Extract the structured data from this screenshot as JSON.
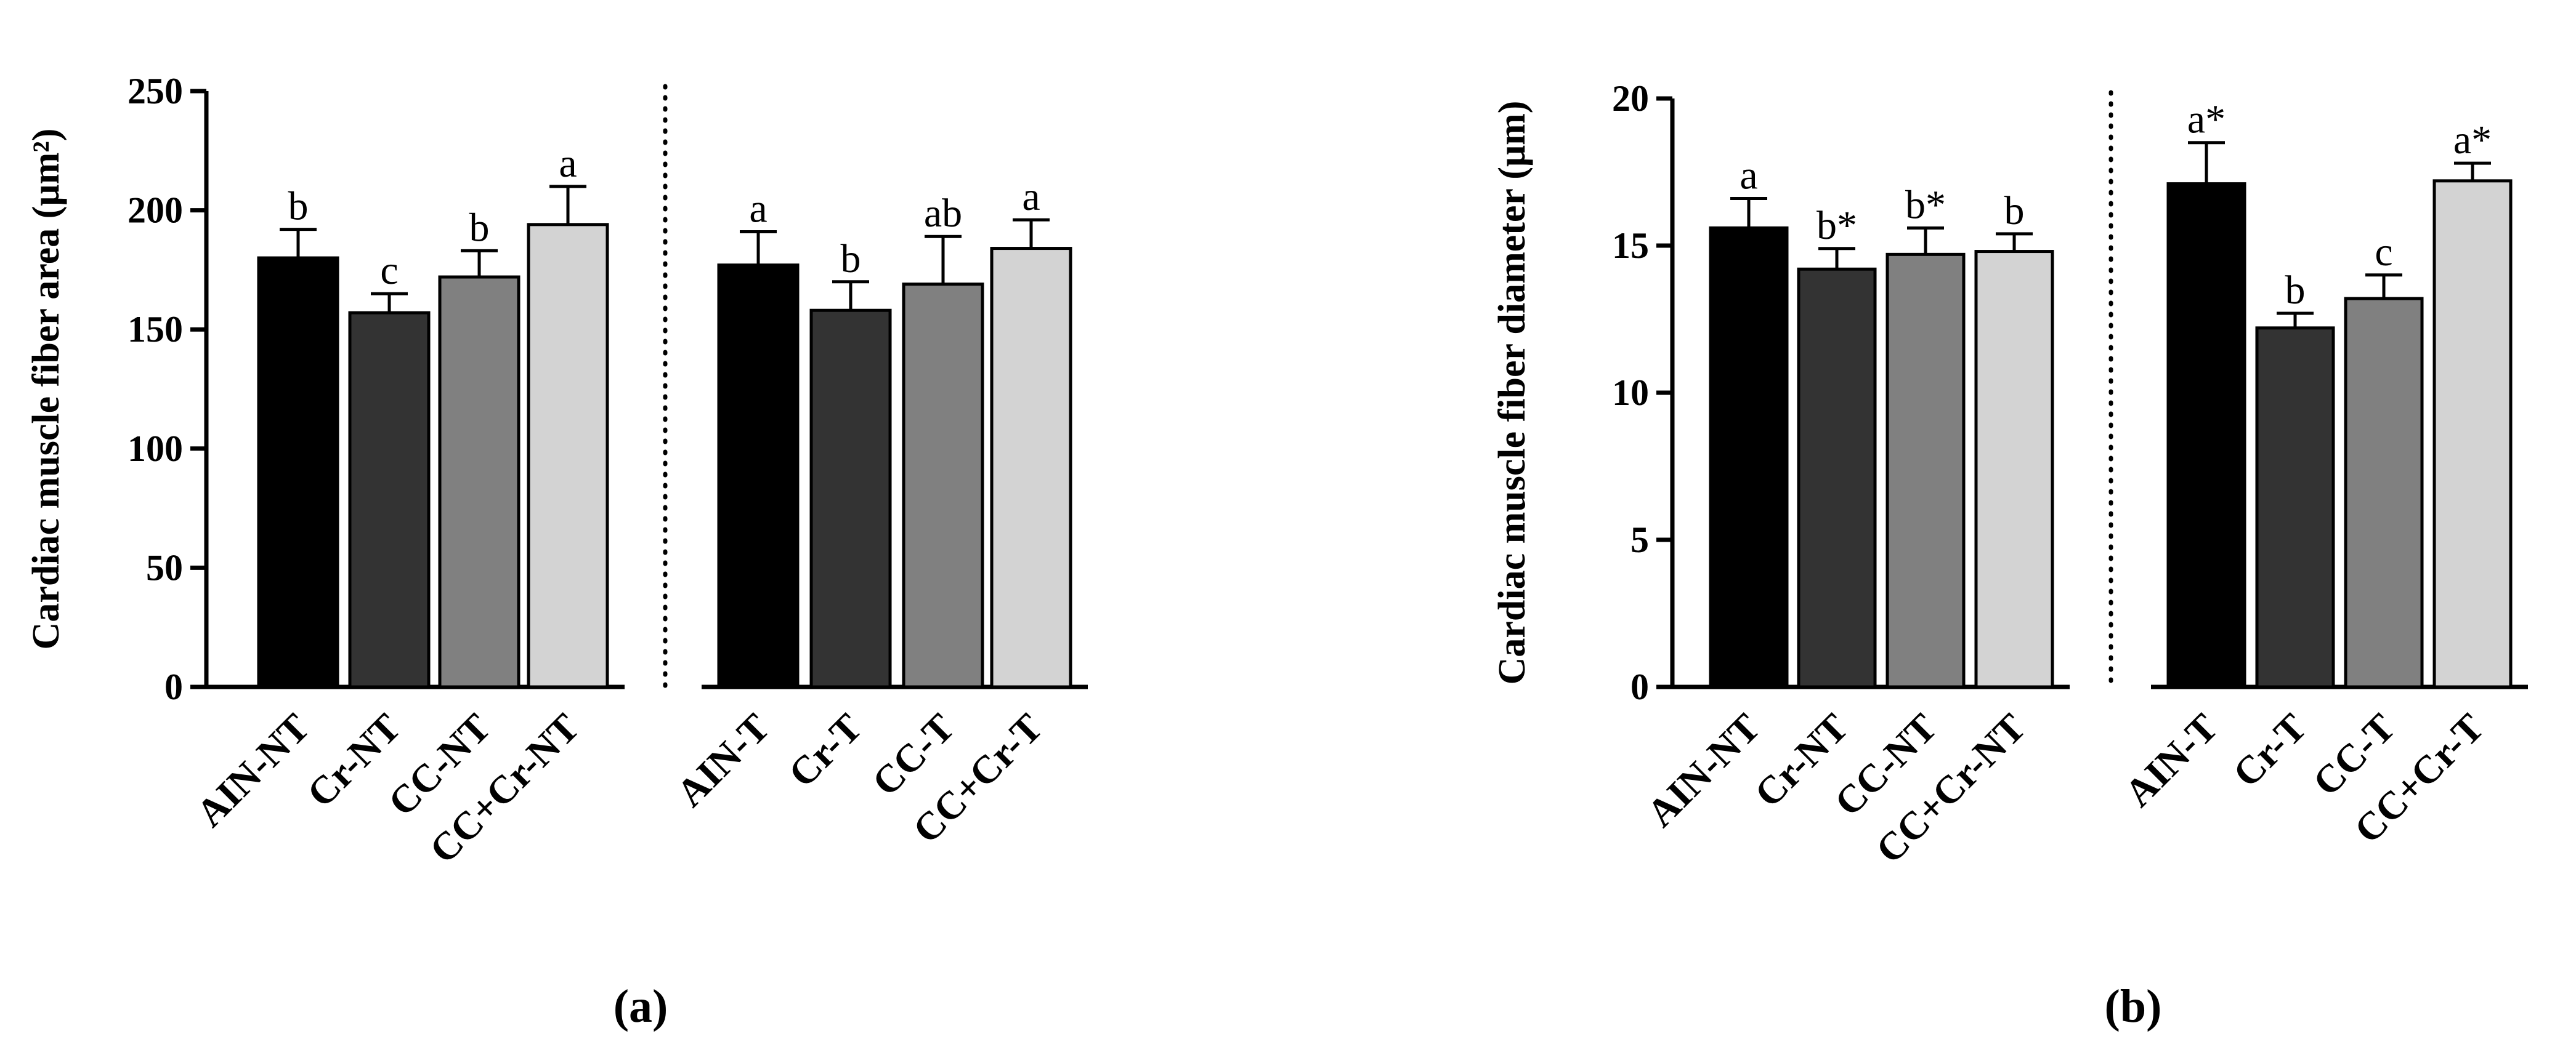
{
  "chart_data": [
    {
      "type": "bar",
      "panel_label": "(a)",
      "title": "",
      "xlabel": "",
      "ylabel": "Cardiac muscle fiber area (μm²)",
      "ylim": [
        0,
        250
      ],
      "yticks": [
        0,
        50,
        100,
        150,
        200,
        250
      ],
      "grid": false,
      "categories": [
        "AIN-NT",
        "Cr-NT",
        "CC-NT",
        "CC+Cr-NT",
        "AIN-T",
        "Cr-T",
        "CC-T",
        "CC+Cr-T"
      ],
      "groups": [
        "NT",
        "NT",
        "NT",
        "NT",
        "T",
        "T",
        "T",
        "T"
      ],
      "values": [
        180,
        157,
        172,
        194,
        177,
        158,
        169,
        184
      ],
      "errors": [
        12,
        8,
        11,
        16,
        14,
        12,
        20,
        12
      ],
      "labels": [
        "b",
        "c",
        "b",
        "a",
        "a",
        "b",
        "ab",
        "a"
      ],
      "colors": [
        "#000000",
        "#333333",
        "#808080",
        "#d3d3d3",
        "#000000",
        "#333333",
        "#808080",
        "#d3d3d3"
      ]
    },
    {
      "type": "bar",
      "panel_label": "(b)",
      "title": "",
      "xlabel": "",
      "ylabel": "Cardiac muscle fiber diameter (μm)",
      "ylim": [
        0,
        20
      ],
      "yticks": [
        0,
        5,
        10,
        15,
        20
      ],
      "grid": false,
      "categories": [
        "AIN-NT",
        "Cr-NT",
        "CC-NT",
        "CC+Cr-NT",
        "AIN-T",
        "Cr-T",
        "CC-T",
        "CC+Cr-T"
      ],
      "groups": [
        "NT",
        "NT",
        "NT",
        "NT",
        "T",
        "T",
        "T",
        "T"
      ],
      "values": [
        15.6,
        14.2,
        14.7,
        14.8,
        17.1,
        12.2,
        13.2,
        17.2
      ],
      "errors": [
        1.0,
        0.7,
        0.9,
        0.6,
        1.4,
        0.5,
        0.8,
        0.6
      ],
      "labels": [
        "a",
        "b*",
        "b*",
        "b",
        "a*",
        "b",
        "c",
        "a*"
      ],
      "colors": [
        "#000000",
        "#333333",
        "#808080",
        "#d3d3d3",
        "#000000",
        "#333333",
        "#808080",
        "#d3d3d3"
      ]
    }
  ]
}
